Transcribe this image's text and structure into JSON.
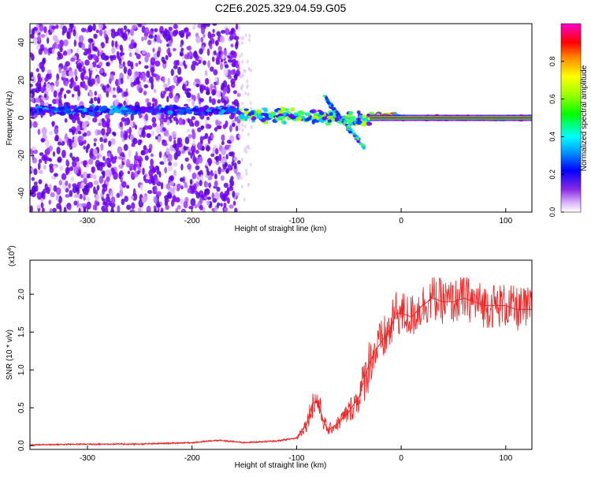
{
  "title": "C2E6.2025.329.04.59.G05",
  "chart_data": [
    {
      "type": "heatmap",
      "title": "C2E6.2025.329.04.59.G05",
      "xlabel": "Height of straight line (km)",
      "ylabel": "Frequency (Hz)",
      "xlim": [
        -355,
        125
      ],
      "ylim": [
        -50,
        50
      ],
      "xticks": [
        -300,
        -200,
        -100,
        0,
        100
      ],
      "xtick_labels": [
        "-300",
        "-200",
        "-100",
        "0",
        "100"
      ],
      "yticks": [
        -40,
        -20,
        0,
        20,
        40
      ],
      "ytick_labels": [
        "-40",
        "-20",
        "0",
        "20",
        "40"
      ],
      "colorbar": {
        "label": "Normalized spectral amplitude",
        "range": [
          0,
          1
        ],
        "ticks": [
          0.0,
          0.2,
          0.4,
          0.6,
          0.8
        ],
        "tick_labels": [
          "0.0",
          "0.2",
          "0.4",
          "0.6",
          "0.8"
        ],
        "colormap": [
          "#ffffff",
          "#cc99ff",
          "#6600ff",
          "#0000ff",
          "#00ccff",
          "#00ff66",
          "#88ff00",
          "#ffff00",
          "#ff8800",
          "#ff0000",
          "#ff00cc"
        ]
      },
      "regions": [
        {
          "name": "broadband-noise",
          "x_range": [
            -355,
            -155
          ],
          "freq_range": [
            -50,
            50
          ],
          "amplitude": 0.15
        },
        {
          "name": "carrier-line",
          "x_range": [
            -355,
            125
          ],
          "freq": 0,
          "amplitude": 0.9
        }
      ]
    },
    {
      "type": "line",
      "xlabel": "Height of straight line (km)",
      "ylabel": "SNR (10 * v/v)",
      "scale_label": "(x10",
      "scale_exp": "4",
      "scale_close": ")",
      "xlim": [
        -355,
        125
      ],
      "ylim": [
        -0.05,
        2.45
      ],
      "xticks": [
        -300,
        -200,
        -100,
        0,
        100
      ],
      "xtick_labels": [
        "-300",
        "-200",
        "-100",
        "0",
        "100"
      ],
      "yticks": [
        0.0,
        0.5,
        1.0,
        1.5,
        2.0
      ],
      "ytick_labels": [
        "0.0",
        "0.5",
        "1.0",
        "1.5",
        "2.0"
      ],
      "series": [
        {
          "name": "SNR",
          "color": "#ee2222",
          "x": [
            -355,
            -300,
            -250,
            -200,
            -175,
            -150,
            -120,
            -100,
            -90,
            -85,
            -80,
            -75,
            -70,
            -60,
            -50,
            -40,
            -35,
            -30,
            -25,
            -20,
            -15,
            -10,
            -5,
            0,
            10,
            20,
            30,
            40,
            50,
            60,
            70,
            80,
            90,
            100,
            110,
            125
          ],
          "values": [
            0.01,
            0.02,
            0.02,
            0.04,
            0.07,
            0.04,
            0.06,
            0.1,
            0.3,
            0.55,
            0.6,
            0.35,
            0.2,
            0.3,
            0.45,
            0.65,
            0.9,
            1.1,
            1.25,
            1.35,
            1.45,
            1.55,
            1.75,
            1.75,
            1.7,
            1.85,
            1.95,
            1.9,
            1.9,
            1.95,
            1.9,
            1.85,
            1.85,
            1.85,
            1.8,
            1.8
          ]
        }
      ]
    }
  ]
}
